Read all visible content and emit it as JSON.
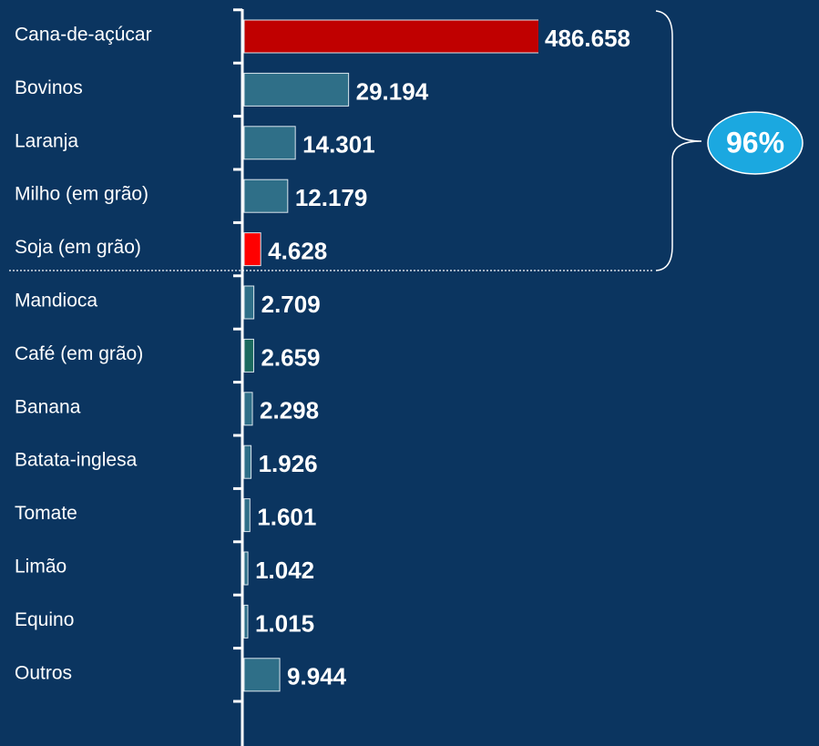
{
  "chart_data": {
    "type": "bar",
    "orientation": "horizontal",
    "categories": [
      "Cana-de-açúcar",
      "Bovinos",
      "Laranja",
      "Milho (em grão)",
      "Soja (em grão)",
      "Mandioca",
      "Café (em grão)",
      "Banana",
      "Batata-inglesa",
      "Tomate",
      "Limão",
      "Equino",
      "Outros"
    ],
    "values": [
      486658,
      29194,
      14301,
      12179,
      4628,
      2709,
      2659,
      2298,
      1926,
      1601,
      1042,
      1015,
      9944
    ],
    "value_labels": [
      "486.658",
      "29.194",
      "14.301",
      "12.179",
      "4.628",
      "2.709",
      "2.659",
      "2.298",
      "1.926",
      "1.601",
      "1.042",
      "1.015",
      "9.944"
    ],
    "colors": [
      "#c00000",
      "#2f6f88",
      "#2f6f88",
      "#2f6f88",
      "#ff0000",
      "#2f6f88",
      "#1b6a5e",
      "#2f6f88",
      "#2f6f88",
      "#2f6f88",
      "#2f6f88",
      "#2f6f88",
      "#2f6f88"
    ],
    "xlim": [
      0,
      82000
    ],
    "annotation": "96%"
  }
}
